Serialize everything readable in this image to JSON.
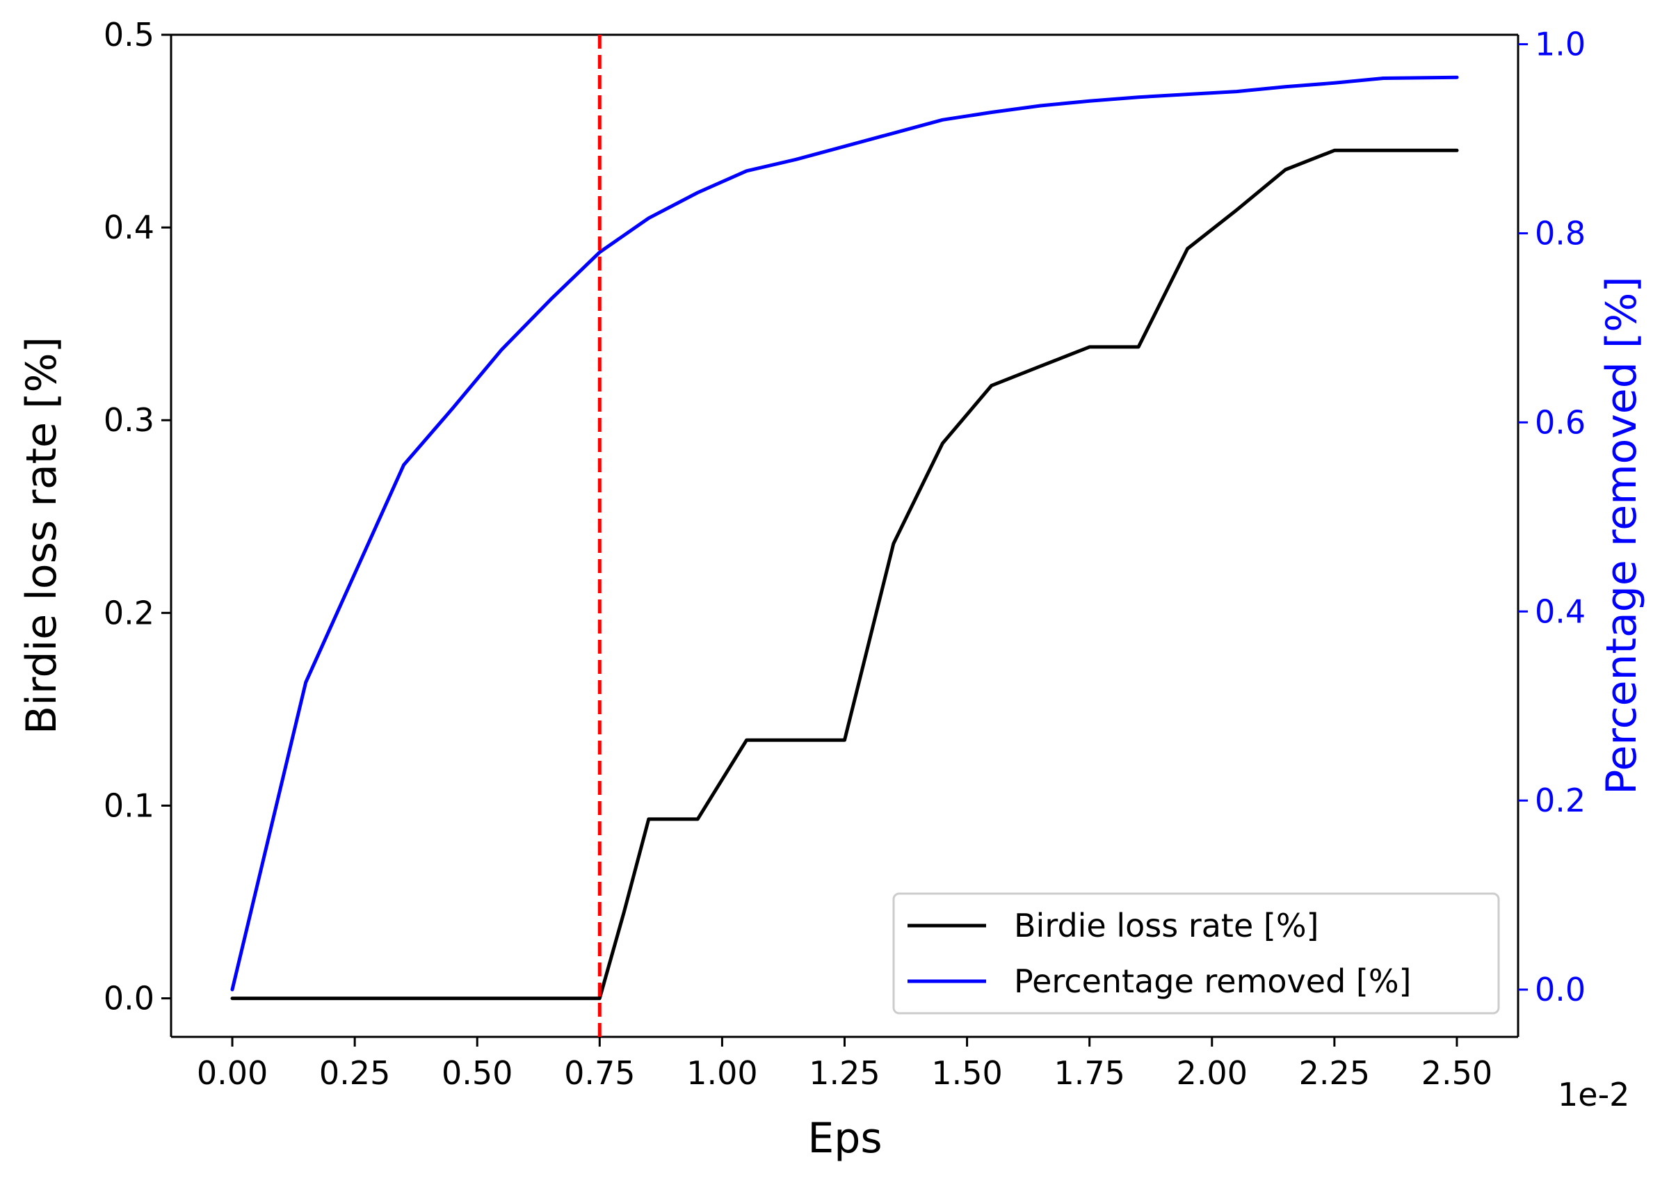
{
  "chart_data": {
    "type": "line",
    "xlabel": "Eps",
    "x_offset_label": "1e-2",
    "xlim": [
      -0.125,
      2.625
    ],
    "x_ticks": [
      0.0,
      0.25,
      0.5,
      0.75,
      1.0,
      1.25,
      1.5,
      1.75,
      2.0,
      2.25,
      2.5
    ],
    "x_tick_labels": [
      "0.00",
      "0.25",
      "0.50",
      "0.75",
      "1.00",
      "1.25",
      "1.50",
      "1.75",
      "2.00",
      "2.25",
      "2.50"
    ],
    "y_left": {
      "label": "Birdie loss rate [%]",
      "ylim": [
        -0.02,
        0.5
      ],
      "ticks": [
        0.0,
        0.1,
        0.2,
        0.3,
        0.4,
        0.5
      ],
      "tick_labels": [
        "0.0",
        "0.1",
        "0.2",
        "0.3",
        "0.4",
        "0.5"
      ],
      "color": "#000000"
    },
    "y_right": {
      "label": "Percentage removed [%]",
      "ylim": [
        -0.05,
        1.01
      ],
      "ticks": [
        0.0,
        0.2,
        0.4,
        0.6,
        0.8,
        1.0
      ],
      "tick_labels": [
        "0.0",
        "0.2",
        "0.4",
        "0.6",
        "0.8",
        "1.0"
      ],
      "color": "#0000ff"
    },
    "series": [
      {
        "name": "Birdie loss rate [%]",
        "axis": "left",
        "color": "#000000",
        "x": [
          0.0,
          0.75,
          0.8,
          0.85,
          0.95,
          1.05,
          1.15,
          1.25,
          1.35,
          1.45,
          1.55,
          1.65,
          1.75,
          1.85,
          1.95,
          2.05,
          2.15,
          2.25,
          2.35,
          2.5
        ],
        "y": [
          0.0,
          0.0,
          0.045,
          0.093,
          0.093,
          0.134,
          0.134,
          0.134,
          0.236,
          0.288,
          0.318,
          0.328,
          0.338,
          0.338,
          0.389,
          0.409,
          0.43,
          0.44,
          0.44,
          0.44
        ]
      },
      {
        "name": "Percentage removed [%]",
        "axis": "right",
        "color": "#0000ff",
        "x": [
          0.0,
          0.15,
          0.25,
          0.35,
          0.45,
          0.55,
          0.65,
          0.75,
          0.85,
          0.95,
          1.05,
          1.15,
          1.25,
          1.35,
          1.45,
          1.55,
          1.65,
          1.75,
          1.85,
          1.95,
          2.05,
          2.15,
          2.25,
          2.35,
          2.5
        ],
        "y": [
          0.0,
          0.325,
          0.44,
          0.555,
          0.615,
          0.677,
          0.73,
          0.78,
          0.816,
          0.843,
          0.866,
          0.878,
          0.892,
          0.906,
          0.92,
          0.928,
          0.935,
          0.94,
          0.944,
          0.947,
          0.95,
          0.955,
          0.959,
          0.964,
          0.965
        ]
      }
    ],
    "vline": {
      "x": 0.75,
      "color": "#ff0000",
      "style": "dashed"
    },
    "legend": {
      "position": "bottom-right",
      "entries": [
        "Birdie loss rate [%]",
        "Percentage removed [%]"
      ]
    },
    "grid": false
  }
}
